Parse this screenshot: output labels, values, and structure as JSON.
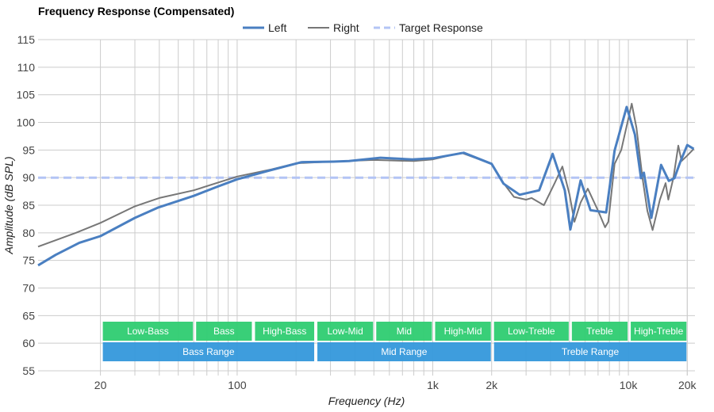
{
  "chart_data": {
    "type": "line",
    "title": "Frequency Response (Compensated)",
    "xlabel": "Frequency (Hz)",
    "ylabel": "Amplitude (dB SPL)",
    "x_scale": "log",
    "xlim": [
      9.6,
      21900
    ],
    "ylim": [
      55,
      115
    ],
    "grid": true,
    "legend_position": "top",
    "y_ticks": [
      55,
      60,
      65,
      70,
      75,
      80,
      85,
      90,
      95,
      100,
      105,
      110,
      115
    ],
    "x_ticks": [
      {
        "value": 20,
        "label": "20"
      },
      {
        "value": 100,
        "label": "100"
      },
      {
        "value": 1000,
        "label": "1k"
      },
      {
        "value": 2000,
        "label": "2k"
      },
      {
        "value": 10000,
        "label": "10k"
      },
      {
        "value": 20000,
        "label": "20k"
      }
    ],
    "series": [
      {
        "name": "Left",
        "color": "#4a7fc1",
        "style": "solid",
        "x": [
          9.6,
          11.8,
          15.6,
          20,
          30,
          39.6,
          60,
          78.5,
          100,
          147,
          213,
          310,
          373,
          540,
          787,
          1000,
          1440,
          2000,
          2300,
          2780,
          3500,
          4100,
          4730,
          5050,
          5700,
          6400,
          7700,
          8500,
          9800,
          10800,
          11600,
          12000,
          13100,
          14700,
          16100,
          17200,
          18500,
          20000,
          21600
        ],
        "y": [
          74.1,
          76,
          78.2,
          79.4,
          82.7,
          84.6,
          86.7,
          88.3,
          89.7,
          91.3,
          92.8,
          92.9,
          93.0,
          93.6,
          93.3,
          93.5,
          94.5,
          92.5,
          88.9,
          86.9,
          87.7,
          94.3,
          87.7,
          80.6,
          89.5,
          84.1,
          83.7,
          94.9,
          102.8,
          97.8,
          89.9,
          90.9,
          82.7,
          92.3,
          89.4,
          89.9,
          93.0,
          95.9,
          95.2
        ]
      },
      {
        "name": "Right",
        "color": "#777777",
        "style": "solid",
        "x": [
          9.6,
          15,
          20,
          30,
          40,
          60,
          100,
          150,
          200,
          300,
          500,
          800,
          1000,
          1400,
          2000,
          2300,
          2600,
          3000,
          3200,
          3700,
          4200,
          4600,
          5000,
          5300,
          5700,
          6200,
          7000,
          7600,
          7900,
          8500,
          9200,
          10400,
          11000,
          11800,
          12500,
          13300,
          14500,
          15500,
          16000,
          17000,
          18000,
          18700,
          20000,
          21600
        ],
        "y": [
          77.5,
          80,
          81.8,
          84.8,
          86.3,
          87.7,
          90.2,
          91.5,
          92.6,
          92.9,
          93.2,
          93.0,
          93.3,
          94.5,
          92.5,
          89,
          86.5,
          86,
          86.3,
          85,
          89,
          92,
          87,
          82,
          85.5,
          88,
          84,
          81,
          82,
          92.5,
          95,
          103.4,
          99,
          90,
          84,
          80.5,
          86,
          89,
          86,
          90,
          95.8,
          93,
          94,
          95.2
        ]
      },
      {
        "name": "Target Response",
        "color": "#b3c4f5",
        "style": "dashed",
        "x": [
          9.6,
          21900
        ],
        "y": [
          90,
          90
        ]
      }
    ],
    "bands": [
      {
        "label": "Low-Bass",
        "from": 20,
        "to": 60,
        "row": 1
      },
      {
        "label": "Bass",
        "from": 60,
        "to": 120,
        "row": 1
      },
      {
        "label": "High-Bass",
        "from": 120,
        "to": 250,
        "row": 1
      },
      {
        "label": "Low-Mid",
        "from": 250,
        "to": 500,
        "row": 1
      },
      {
        "label": "Mid",
        "from": 500,
        "to": 1000,
        "row": 1
      },
      {
        "label": "High-Mid",
        "from": 1000,
        "to": 2000,
        "row": 1
      },
      {
        "label": "Low-Treble",
        "from": 2000,
        "to": 5000,
        "row": 1
      },
      {
        "label": "Treble",
        "from": 5000,
        "to": 10000,
        "row": 1
      },
      {
        "label": "High-Treble",
        "from": 10000,
        "to": 20000,
        "row": 1
      },
      {
        "label": "Bass Range",
        "from": 20,
        "to": 250,
        "row": 2
      },
      {
        "label": "Mid Range",
        "from": 250,
        "to": 2000,
        "row": 2
      },
      {
        "label": "Treble Range",
        "from": 2000,
        "to": 20000,
        "row": 2
      }
    ],
    "band_colors": {
      "row1": "#2ecc71",
      "row2": "#3498db"
    }
  }
}
